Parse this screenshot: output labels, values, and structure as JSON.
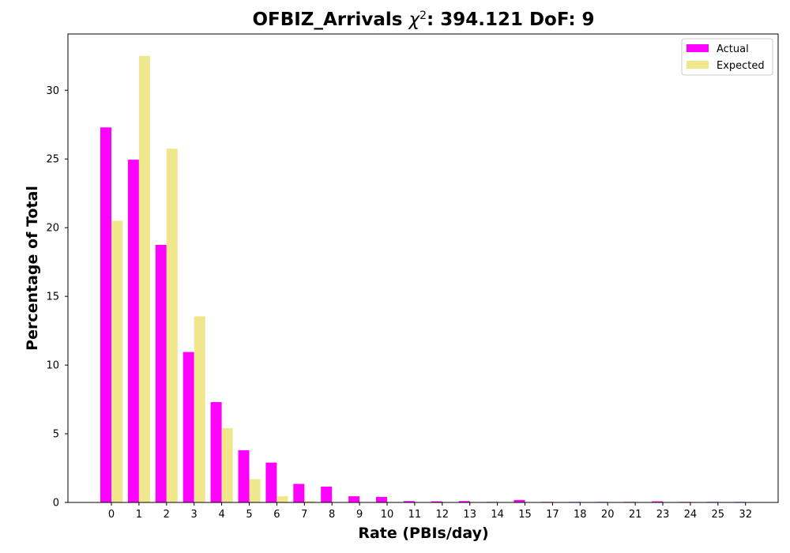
{
  "chart_data": {
    "type": "bar",
    "title_prefix": "OFBIZ_Arrivals ",
    "title_symbol": "χ",
    "title_sup": "2",
    "title_suffix": ": 394.121 DoF: 9",
    "xlabel": "Rate (PBIs/day)",
    "ylabel": "Percentage of Total",
    "categories": [
      "0",
      "1",
      "2",
      "3",
      "4",
      "5",
      "6",
      "7",
      "8",
      "9",
      "10",
      "11",
      "12",
      "13",
      "14",
      "15",
      "17",
      "18",
      "20",
      "21",
      "23",
      "24",
      "25",
      "32"
    ],
    "ylim": [
      0,
      34.1
    ],
    "yticks": [
      0,
      5,
      10,
      15,
      20,
      25,
      30
    ],
    "grid": false,
    "legend_position": "top-right",
    "series": [
      {
        "name": "Actual",
        "color": "#ff00ff",
        "values": [
          27.3,
          24.95,
          18.75,
          10.95,
          7.3,
          3.8,
          2.9,
          1.35,
          1.15,
          0.45,
          0.4,
          0.1,
          0.08,
          0.1,
          0.04,
          0.18,
          0.04,
          0.04,
          0.04,
          0.04,
          0.08,
          0.04,
          0.04,
          0.04
        ]
      },
      {
        "name": "Expected",
        "color": "#f0e68c",
        "values": [
          20.5,
          32.5,
          25.75,
          13.55,
          5.4,
          1.7,
          0.45,
          0.1,
          0.02,
          0,
          0,
          0,
          0,
          0,
          0,
          0,
          0,
          0,
          0,
          0,
          0,
          0,
          0,
          0
        ]
      }
    ]
  }
}
